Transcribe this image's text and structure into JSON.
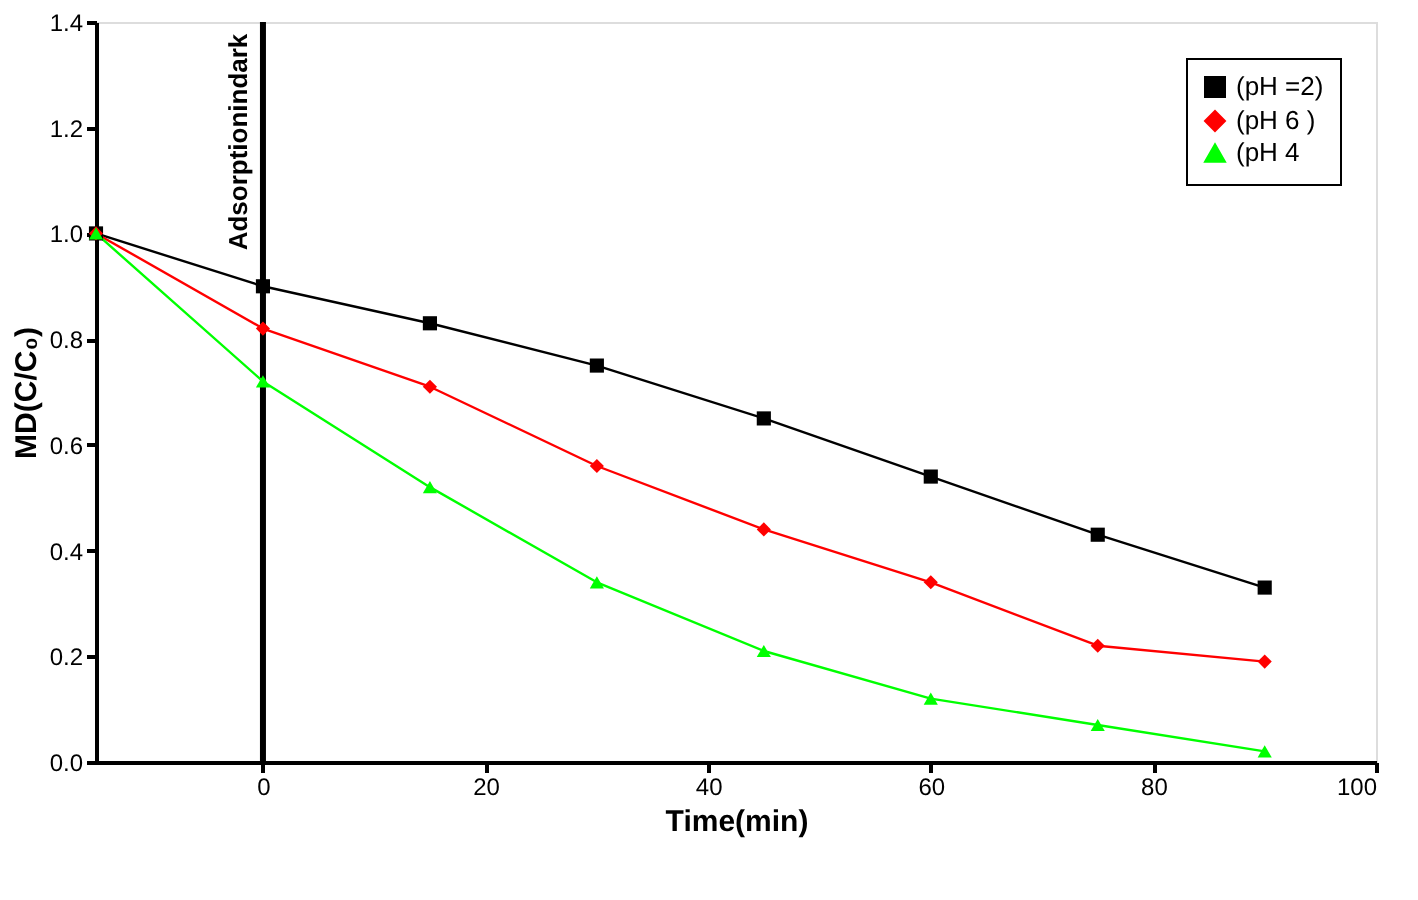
{
  "chart_data": {
    "type": "line",
    "xlabel": "Time(min)",
    "ylabel": "MD(C/C₀)",
    "x": [
      -15,
      0,
      15,
      30,
      45,
      60,
      75,
      90
    ],
    "series": [
      {
        "name": "(pH =2)",
        "color": "#000000",
        "marker": "square",
        "values": [
          1.0,
          0.9,
          0.83,
          0.75,
          0.65,
          0.54,
          0.43,
          0.33
        ]
      },
      {
        "name": "(pH 6 )",
        "color": "#ff0000",
        "marker": "diamond",
        "values": [
          1.0,
          0.82,
          0.71,
          0.56,
          0.44,
          0.34,
          0.22,
          0.19
        ]
      },
      {
        "name": "(pH 4",
        "color": "#00ff00",
        "marker": "triangle",
        "values": [
          1.0,
          0.72,
          0.52,
          0.34,
          0.21,
          0.12,
          0.07,
          0.02
        ]
      }
    ],
    "xlim": [
      -15,
      100
    ],
    "xticks": [
      0,
      20,
      40,
      60,
      80,
      100
    ],
    "ylim": [
      0,
      1.4
    ],
    "yticks": [
      {
        "value": 0,
        "label": "0.0"
      },
      0.2,
      0.4,
      0.6,
      0.8,
      {
        "value": 1,
        "label": "1.0"
      },
      1.2,
      1.4
    ],
    "ref_lines": [
      {
        "axis": "x",
        "value": 0,
        "label": "Adsorptionindark",
        "color": "#000000"
      }
    ],
    "grid": false,
    "legend": "top right",
    "line_style": "solid"
  }
}
